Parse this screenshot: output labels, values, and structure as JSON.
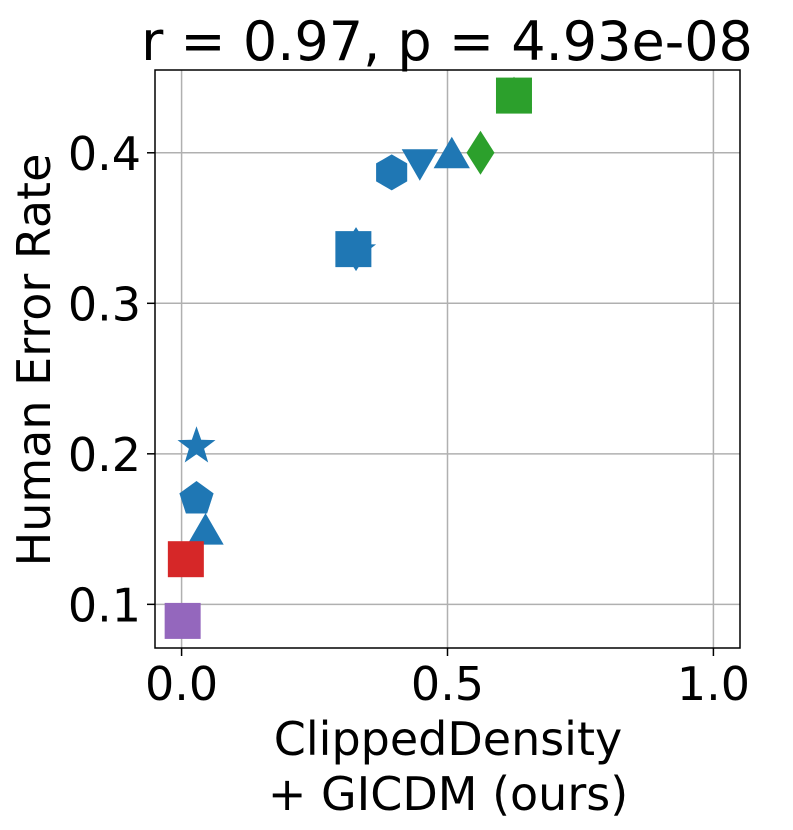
{
  "chart_data": {
    "type": "scatter",
    "title": "r = 0.97, p = 4.93e-08",
    "xlabel_lines": [
      "ClippedDensity",
      "+ GICDM (ours)"
    ],
    "ylabel": "Human Error Rate",
    "xlim": [
      -0.05,
      1.05
    ],
    "ylim": [
      0.071,
      0.455
    ],
    "xticks": [
      0.0,
      0.5,
      1.0
    ],
    "xtick_labels": [
      "0.0",
      "0.5",
      "1.0"
    ],
    "yticks": [
      0.1,
      0.2,
      0.3,
      0.4
    ],
    "ytick_labels": [
      "0.1",
      "0.2",
      "0.3",
      "0.4"
    ],
    "grid": true,
    "colors": {
      "blue": "#1f77b4",
      "green": "#2ca02c",
      "red": "#d62728",
      "purple": "#9467bd",
      "grid": "#b0b0b0"
    },
    "points": [
      {
        "x": 0.625,
        "y": 0.438,
        "marker": "triangle-up",
        "color": "green"
      },
      {
        "x": 0.625,
        "y": 0.438,
        "marker": "square",
        "color": "green"
      },
      {
        "x": 0.562,
        "y": 0.4,
        "marker": "diamond",
        "color": "green"
      },
      {
        "x": 0.508,
        "y": 0.398,
        "marker": "triangle-up",
        "color": "blue"
      },
      {
        "x": 0.448,
        "y": 0.394,
        "marker": "triangle-down",
        "color": "blue"
      },
      {
        "x": 0.395,
        "y": 0.387,
        "marker": "hexagon",
        "color": "blue"
      },
      {
        "x": 0.33,
        "y": 0.335,
        "marker": "star",
        "color": "blue"
      },
      {
        "x": 0.328,
        "y": 0.336,
        "marker": "diamond",
        "color": "blue"
      },
      {
        "x": 0.323,
        "y": 0.336,
        "marker": "square",
        "color": "blue"
      },
      {
        "x": 0.028,
        "y": 0.205,
        "marker": "star",
        "color": "blue"
      },
      {
        "x": 0.028,
        "y": 0.17,
        "marker": "pentagon",
        "color": "blue"
      },
      {
        "x": 0.045,
        "y": 0.148,
        "marker": "triangle-up",
        "color": "blue"
      },
      {
        "x": 0.008,
        "y": 0.13,
        "marker": "square",
        "color": "red"
      },
      {
        "x": 0.002,
        "y": 0.089,
        "marker": "square",
        "color": "purple"
      }
    ]
  }
}
